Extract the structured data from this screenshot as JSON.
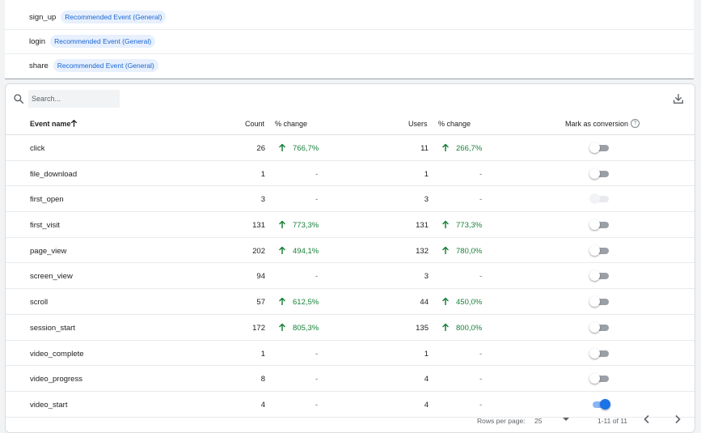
{
  "recommended": [
    {
      "name": "sign_up",
      "badge": "Recommended Event (General)"
    },
    {
      "name": "login",
      "badge": "Recommended Event (General)"
    },
    {
      "name": "share",
      "badge": "Recommended Event (General)"
    }
  ],
  "search": {
    "placeholder": "Search..."
  },
  "table": {
    "headers": {
      "event_name": "Event name",
      "count": "Count",
      "count_change": "% change",
      "users": "Users",
      "users_change": "% change",
      "mark": "Mark as conversion",
      "help": "?"
    },
    "rows": [
      {
        "name": "click",
        "count": "26",
        "count_change": "766,7%",
        "users": "11",
        "users_change": "266,7%",
        "conversion": "off"
      },
      {
        "name": "file_download",
        "count": "1",
        "count_change": "-",
        "users": "1",
        "users_change": "-",
        "conversion": "off"
      },
      {
        "name": "first_open",
        "count": "3",
        "count_change": "-",
        "users": "3",
        "users_change": "-",
        "conversion": "disabled"
      },
      {
        "name": "first_visit",
        "count": "131",
        "count_change": "773,3%",
        "users": "131",
        "users_change": "773,3%",
        "conversion": "off"
      },
      {
        "name": "page_view",
        "count": "202",
        "count_change": "494,1%",
        "users": "132",
        "users_change": "780,0%",
        "conversion": "off"
      },
      {
        "name": "screen_view",
        "count": "94",
        "count_change": "-",
        "users": "3",
        "users_change": "-",
        "conversion": "off"
      },
      {
        "name": "scroll",
        "count": "57",
        "count_change": "612,5%",
        "users": "44",
        "users_change": "450,0%",
        "conversion": "off"
      },
      {
        "name": "session_start",
        "count": "172",
        "count_change": "805,3%",
        "users": "135",
        "users_change": "800,0%",
        "conversion": "off"
      },
      {
        "name": "video_complete",
        "count": "1",
        "count_change": "-",
        "users": "1",
        "users_change": "-",
        "conversion": "off"
      },
      {
        "name": "video_progress",
        "count": "8",
        "count_change": "-",
        "users": "4",
        "users_change": "-",
        "conversion": "off"
      },
      {
        "name": "video_start",
        "count": "4",
        "count_change": "-",
        "users": "4",
        "users_change": "-",
        "conversion": "on"
      }
    ]
  },
  "pagination": {
    "rows_label": "Rows per page:",
    "rows_value": "25",
    "range": "1-11 of 11"
  },
  "colors": {
    "accent": "#1a73e8",
    "positive": "#188038",
    "chip_bg": "#e8f0fe",
    "chip_text": "#1967d2"
  }
}
